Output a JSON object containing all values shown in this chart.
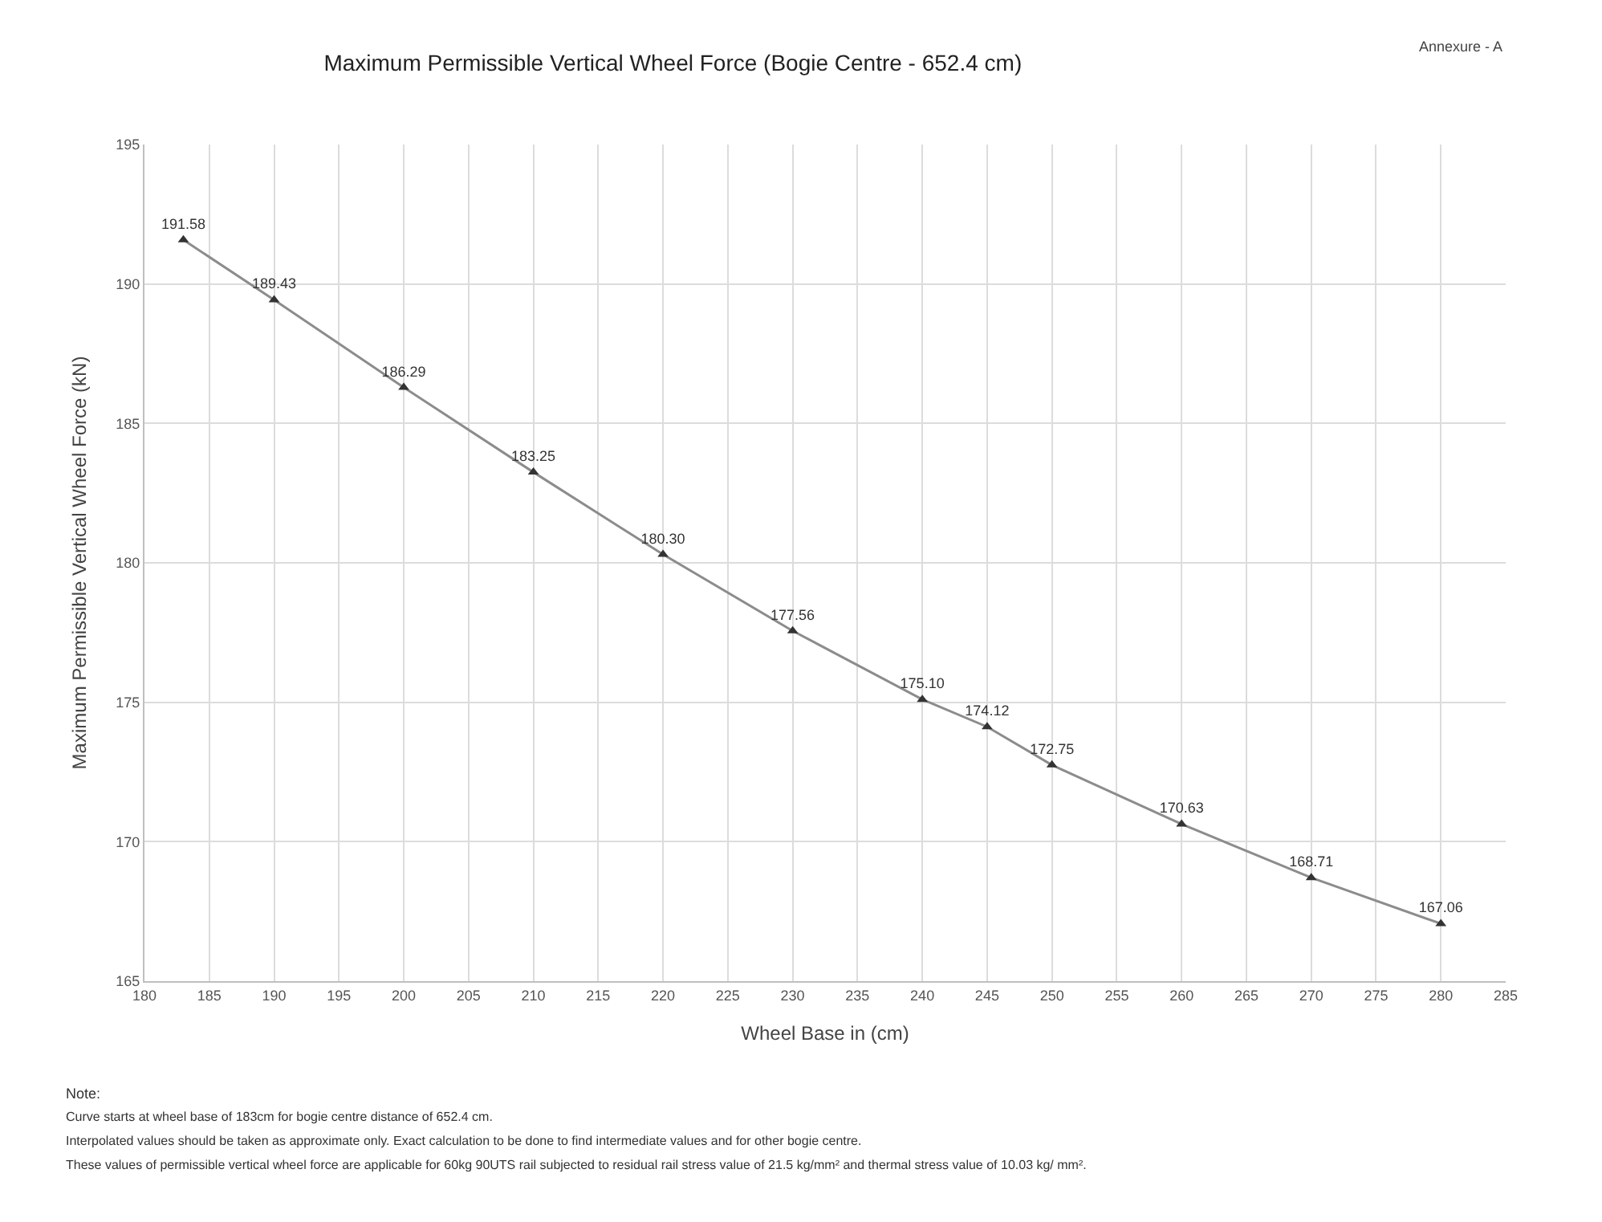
{
  "chart_data": {
    "type": "line",
    "title": "Maximum Permissible Vertical Wheel Force (Bogie Centre - 652.4 cm)",
    "xlabel": "Wheel Base in (cm)",
    "ylabel": "Maximum Permissible Vertical Wheel Force (kN)",
    "x": [
      183,
      190,
      200,
      210,
      220,
      230,
      240,
      245,
      250,
      260,
      270,
      280
    ],
    "series": [
      {
        "color": "#8c8c8c",
        "values": [
          191.58,
          189.43,
          186.29,
          183.25,
          180.3,
          177.56,
          175.1,
          174.12,
          172.75,
          170.63,
          168.71,
          167.06
        ],
        "value_labels": [
          "191.58",
          "189.43",
          "186.29",
          "183.25",
          "180.30",
          "177.56",
          "175.10",
          "174.12",
          "172.75",
          "170.63",
          "168.71",
          "167.06"
        ]
      }
    ],
    "xlim": [
      180,
      285
    ],
    "xticks": [
      180,
      185,
      190,
      195,
      200,
      205,
      210,
      215,
      220,
      225,
      230,
      235,
      240,
      245,
      250,
      255,
      260,
      265,
      270,
      275,
      280,
      285
    ],
    "ylim": [
      165,
      195
    ],
    "yticks": [
      165,
      170,
      175,
      180,
      185,
      190,
      195
    ],
    "grid": true,
    "legend": false,
    "marker": "triangle",
    "line_style": "solid",
    "annotations": [
      "Annexure - A",
      "Note:",
      "Curve starts at wheel base of 183cm for bogie centre distance of 652.4 cm.",
      "Interpolated values should be taken as approximate only. Exact calculation to be done to find intermediate values and for other bogie centre.",
      "These values of permissible vertical wheel force are applicable for 60kg 90UTS rail subjected to residual rail stress value of 21.5 kg/mm² and thermal stress value of 10.03 kg/ mm²."
    ]
  }
}
